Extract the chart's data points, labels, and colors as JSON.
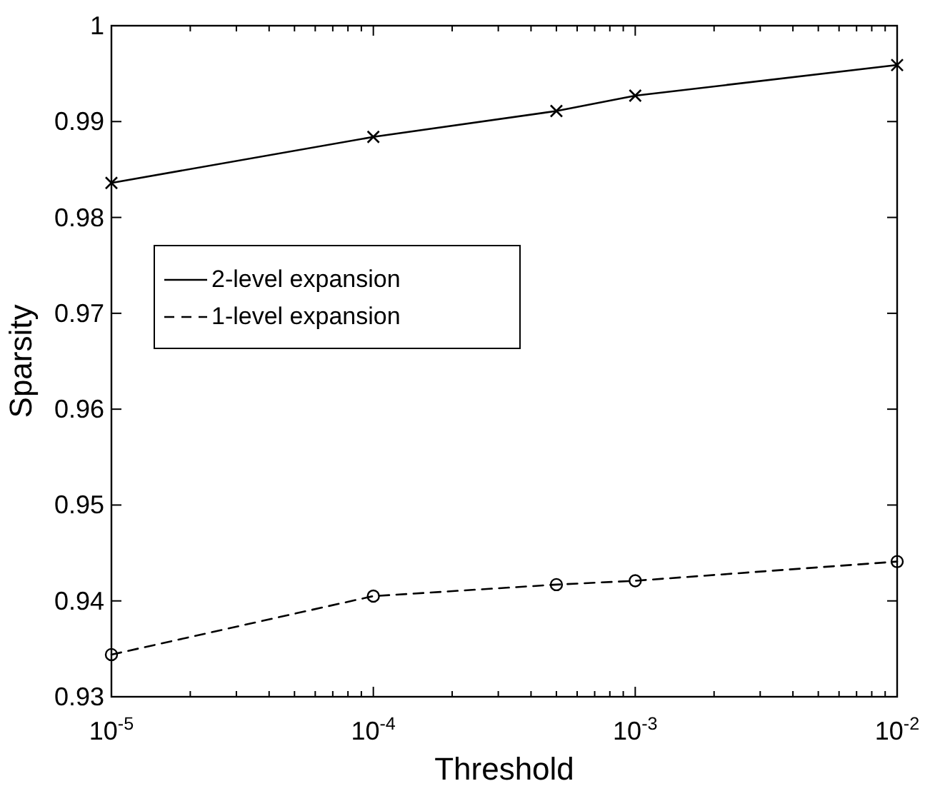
{
  "chart_data": {
    "type": "line",
    "xlabel": "Threshold",
    "ylabel": "Sparsity",
    "log": "x",
    "x": [
      1e-05,
      0.0001,
      0.0005,
      0.001,
      0.01
    ],
    "series": [
      {
        "name": "2-level expansion",
        "color": "#000000",
        "values": [
          0.9836,
          0.9884,
          0.9911,
          0.9927,
          0.9959
        ],
        "marker": "cross",
        "line_style": "solid"
      },
      {
        "name": "1-level expansion",
        "color": "#000000",
        "values": [
          0.9344,
          0.9405,
          0.9417,
          0.9421,
          0.9441
        ],
        "marker": "circle",
        "line_style": "dashed"
      }
    ],
    "xlim": [
      1e-05,
      0.01
    ],
    "xticks": [
      {
        "value": 1e-05,
        "label": "10$^{-5}$"
      },
      {
        "value": 2e-05,
        "label": null
      },
      {
        "value": 3e-05,
        "label": null
      },
      {
        "value": 4e-05,
        "label": null
      },
      {
        "value": 5e-05,
        "label": null
      },
      {
        "value": 6e-05,
        "label": null
      },
      {
        "value": 7e-05,
        "label": null
      },
      {
        "value": 8e-05,
        "label": null
      },
      {
        "value": 9e-05,
        "label": null
      },
      {
        "value": 0.0001,
        "label": "10$^{-4}$"
      },
      {
        "value": 0.0002,
        "label": null
      },
      {
        "value": 0.0003,
        "label": null
      },
      {
        "value": 0.0004,
        "label": null
      },
      {
        "value": 0.0005,
        "label": null
      },
      {
        "value": 0.0006,
        "label": null
      },
      {
        "value": 0.0007,
        "label": null
      },
      {
        "value": 0.0008,
        "label": null
      },
      {
        "value": 0.0009,
        "label": null
      },
      {
        "value": 0.001,
        "label": "10$^{-3}$"
      },
      {
        "value": 0.002,
        "label": null
      },
      {
        "value": 0.003,
        "label": null
      },
      {
        "value": 0.004,
        "label": null
      },
      {
        "value": 0.005,
        "label": null
      },
      {
        "value": 0.006,
        "label": null
      },
      {
        "value": 0.007,
        "label": null
      },
      {
        "value": 0.008,
        "label": null
      },
      {
        "value": 0.009,
        "label": null
      },
      {
        "value": 0.01,
        "label": "10$^{-2}$"
      }
    ],
    "ylim": [
      0.93,
      1
    ],
    "yticks": [
      0.93,
      0.94,
      0.95,
      0.96,
      0.97,
      0.98,
      0.99,
      {
        "value": 1,
        "label": "1"
      }
    ],
    "legend": "top left",
    "grid": false
  }
}
